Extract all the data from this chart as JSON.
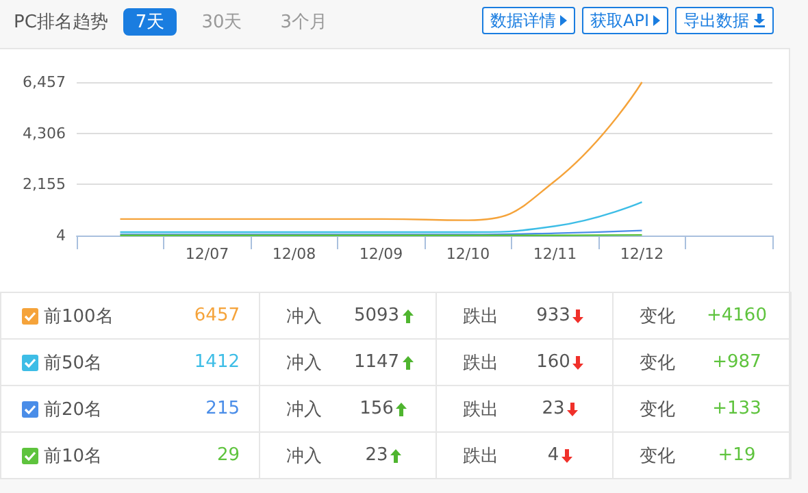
{
  "chart_data": {
    "type": "line",
    "title": "PC排名趋势",
    "categories": [
      null,
      "12/07",
      "12/08",
      "12/09",
      "12/10",
      "12/11",
      "12/12",
      null
    ],
    "series": [
      {
        "name": "前100名",
        "color": "#f5a33a",
        "values": [
          700,
          700,
          700,
          700,
          650,
          2300,
          6457,
          null
        ]
      },
      {
        "name": "前50名",
        "color": "#3dbde6",
        "values": [
          150,
          150,
          150,
          150,
          150,
          400,
          1412,
          null
        ]
      },
      {
        "name": "前20名",
        "color": "#4a8de8",
        "values": [
          50,
          50,
          50,
          50,
          50,
          100,
          215,
          null
        ]
      },
      {
        "name": "前10名",
        "color": "#5ec33d",
        "values": [
          10,
          10,
          10,
          10,
          10,
          10,
          29,
          null
        ]
      }
    ],
    "ylim": [
      4,
      6457
    ],
    "yticks": [
      4,
      {
        "value": 2155,
        "label": "2,155"
      },
      {
        "value": 4306,
        "label": "4,306"
      },
      {
        "value": 6457,
        "label": "6,457"
      }
    ],
    "grid": "y",
    "legend": "bottom",
    "marker": "none",
    "line_style": "solid",
    "annotations": [
      "7天",
      "30天",
      "3个月",
      "数据详情",
      "获取API",
      "导出数据",
      "6457",
      "冲入",
      "5093",
      "跌出",
      "933",
      "变化",
      "+4160",
      "1412",
      "冲入",
      "1147",
      "跌出",
      "160",
      "变化",
      "+987",
      "215",
      "冲入",
      "156",
      "跌出",
      "23",
      "变化",
      "+133",
      "29",
      "冲入",
      "23",
      "跌出",
      "4",
      "变化",
      "+19"
    ]
  }
}
